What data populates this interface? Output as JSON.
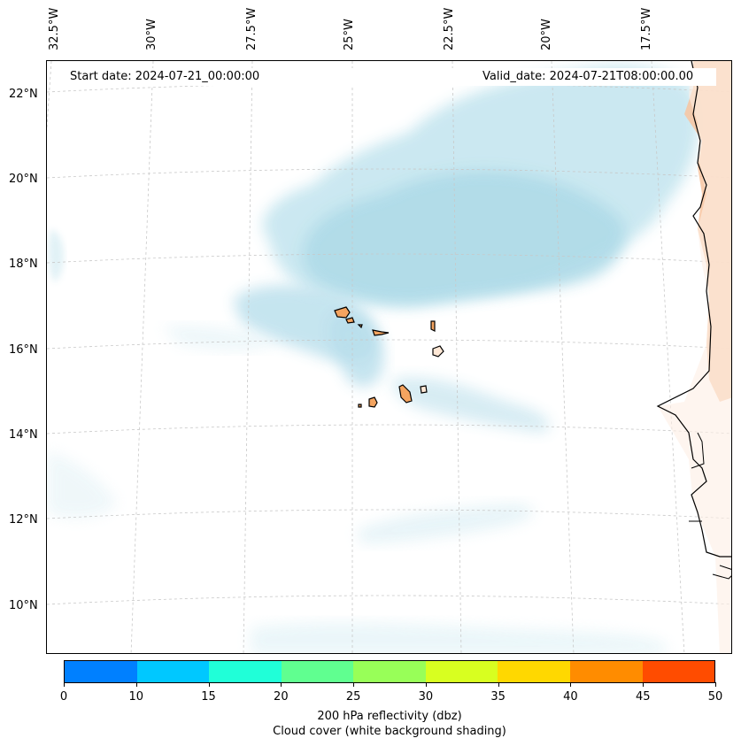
{
  "header": {
    "start_date": "Start date: 2024-07-21_00:00:00",
    "valid_date": "Valid_date: 2024-07-21T08:00:00.00"
  },
  "axes": {
    "longitude_labels": [
      "32.5°W",
      "30°W",
      "27.5°W",
      "25°W",
      "22.5°W",
      "20°W",
      "17.5°W"
    ],
    "latitude_labels": [
      "22°N",
      "20°N",
      "18°N",
      "16°N",
      "14°N",
      "12°N",
      "10°N"
    ]
  },
  "colorbar": {
    "ticks": [
      "0",
      "10",
      "15",
      "20",
      "25",
      "30",
      "35",
      "40",
      "45",
      "50"
    ],
    "colors": [
      "#0080ff",
      "#00c8ff",
      "#20ffd8",
      "#60ff90",
      "#98ff58",
      "#d8ff20",
      "#ffd800",
      "#ff8c00",
      "#ff4c00"
    ],
    "label_line1": "200 hPa reflectivity (dbz)",
    "label_line2": "Cloud cover (white background shading)"
  },
  "style": {
    "cloud_color": "#b0dcea",
    "land_color": "#f4a460",
    "coast_color": "#000000"
  }
}
